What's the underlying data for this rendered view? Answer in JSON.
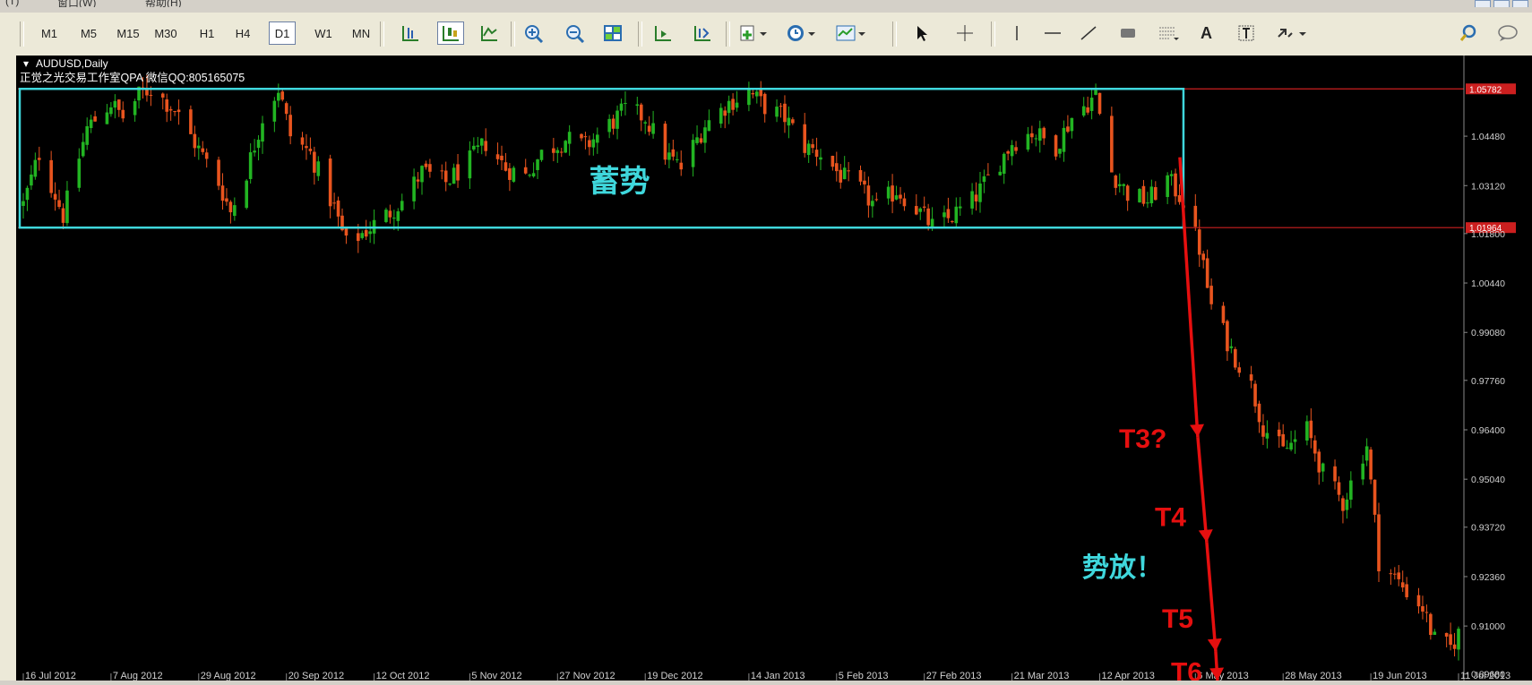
{
  "menu": [
    "(T)",
    "窗口(W)",
    "帮助(H)"
  ],
  "toolbar": {
    "timeframes": [
      "M1",
      "M5",
      "M15",
      "M30",
      "H1",
      "H4",
      "D1",
      "W1",
      "MN"
    ],
    "active_timeframe": "D1",
    "icons": [
      "bar-chart-icon",
      "candlestick-icon",
      "line-chart-icon",
      "zoom-in-icon",
      "zoom-out-icon",
      "tile-windows-icon",
      "auto-scroll-icon",
      "chart-shift-icon",
      "indicators-icon",
      "periods-icon",
      "templates-icon",
      "cursor-icon",
      "crosshair-icon",
      "vertical-line-icon",
      "horizontal-line-icon",
      "trendline-icon",
      "rectangle-icon",
      "fibonacci-icon",
      "text-icon",
      "text-label-icon",
      "arrows-icon",
      "search-icon",
      "chat-icon"
    ],
    "text_tool_label": "A"
  },
  "chart_header": {
    "symbol": "AUDUSD,Daily",
    "watermark": "正觉之光交易工作室QPA 微信QQ:805165075"
  },
  "colors": {
    "background": "#000000",
    "bull": "#22b422",
    "bear": "#e8541e",
    "box": "#3fd7dc",
    "level_line": "#cc1f1f",
    "arrow": "#e60f0f",
    "axis_text": "#d0d0d0"
  },
  "annotations": {
    "box_label": "蓄势",
    "breakout_label": "势放！",
    "targets": [
      "T3?",
      "T4",
      "T5",
      "T6"
    ]
  },
  "chart_data": {
    "type": "candlestick",
    "symbol": "AUDUSD",
    "timeframe": "Daily",
    "ylim": [
      0.895,
      1.067
    ],
    "y_ticks": [
      "1.04480",
      "1.03120",
      "1.01800",
      "1.00440",
      "0.99080",
      "0.97760",
      "0.96400",
      "0.95040",
      "0.93720",
      "0.92360",
      "0.91000",
      "0.89680"
    ],
    "x_ticks": [
      "16 Jul 2012",
      "7 Aug 2012",
      "29 Aug 2012",
      "20 Sep 2012",
      "12 Oct 2012",
      "5 Nov 2012",
      "27 Nov 2012",
      "19 Dec 2012",
      "14 Jan 2013",
      "5 Feb 2013",
      "27 Feb 2013",
      "21 Mar 2013",
      "12 Apr 2013",
      "6 May 2013",
      "28 May 2013",
      "19 Jun 2013",
      "11 Jul 2013"
    ],
    "price_labels": [
      {
        "value": 1.05782,
        "text": "1.05782"
      },
      {
        "value": 1.01964,
        "text": "1.01964"
      }
    ],
    "consolidation_box": {
      "x_from": "16 Jul 2012",
      "x_to": "3 May 2013",
      "y_low": 1.01964,
      "y_high": 1.05782
    },
    "close_path": [
      [
        "2012-07-16",
        1.026
      ],
      [
        "2012-07-20",
        1.04
      ],
      [
        "2012-07-26",
        1.023
      ],
      [
        "2012-08-01",
        1.047
      ],
      [
        "2012-08-07",
        1.054
      ],
      [
        "2012-08-10",
        1.05
      ],
      [
        "2012-08-14",
        1.056
      ],
      [
        "2012-08-17",
        1.058
      ],
      [
        "2012-08-23",
        1.052
      ],
      [
        "2012-08-28",
        1.043
      ],
      [
        "2012-09-03",
        1.032
      ],
      [
        "2012-09-06",
        1.024
      ],
      [
        "2012-09-10",
        1.035
      ],
      [
        "2012-09-14",
        1.05
      ],
      [
        "2012-09-18",
        1.058
      ],
      [
        "2012-09-21",
        1.045
      ],
      [
        "2012-09-26",
        1.04
      ],
      [
        "2012-10-02",
        1.025
      ],
      [
        "2012-10-05",
        1.015
      ],
      [
        "2012-10-09",
        1.018
      ],
      [
        "2012-10-15",
        1.023
      ],
      [
        "2012-10-19",
        1.027
      ],
      [
        "2012-10-24",
        1.035
      ],
      [
        "2012-10-30",
        1.032
      ],
      [
        "2012-11-05",
        1.038
      ],
      [
        "2012-11-09",
        1.043
      ],
      [
        "2012-11-14",
        1.036
      ],
      [
        "2012-11-19",
        1.034
      ],
      [
        "2012-11-23",
        1.04
      ],
      [
        "2012-11-29",
        1.044
      ],
      [
        "2012-12-04",
        1.042
      ],
      [
        "2012-12-10",
        1.048
      ],
      [
        "2012-12-14",
        1.052
      ],
      [
        "2012-12-19",
        1.05
      ],
      [
        "2012-12-24",
        1.04
      ],
      [
        "2012-12-28",
        1.036
      ],
      [
        "2013-01-03",
        1.048
      ],
      [
        "2013-01-09",
        1.054
      ],
      [
        "2013-01-14",
        1.057
      ],
      [
        "2013-01-18",
        1.053
      ],
      [
        "2013-01-23",
        1.05
      ],
      [
        "2013-01-28",
        1.042
      ],
      [
        "2013-02-01",
        1.04
      ],
      [
        "2013-02-06",
        1.034
      ],
      [
        "2013-02-11",
        1.03
      ],
      [
        "2013-02-15",
        1.025
      ],
      [
        "2013-02-20",
        1.03
      ],
      [
        "2013-02-25",
        1.025
      ],
      [
        "2013-03-01",
        1.02
      ],
      [
        "2013-03-05",
        1.022
      ],
      [
        "2013-03-11",
        1.027
      ],
      [
        "2013-03-15",
        1.033
      ],
      [
        "2013-03-21",
        1.043
      ],
      [
        "2013-03-26",
        1.046
      ],
      [
        "2013-04-01",
        1.042
      ],
      [
        "2013-04-05",
        1.05
      ],
      [
        "2013-04-11",
        1.056
      ],
      [
        "2013-04-15",
        1.035
      ],
      [
        "2013-04-19",
        1.029
      ],
      [
        "2013-04-24",
        1.027
      ],
      [
        "2013-04-29",
        1.033
      ],
      [
        "2013-05-03",
        1.027
      ],
      [
        "2013-05-07",
        1.014
      ],
      [
        "2013-05-10",
        0.998
      ],
      [
        "2013-05-15",
        0.986
      ],
      [
        "2013-05-20",
        0.976
      ],
      [
        "2013-05-23",
        0.965
      ],
      [
        "2013-05-28",
        0.958
      ],
      [
        "2013-06-03",
        0.964
      ],
      [
        "2013-06-07",
        0.952
      ],
      [
        "2013-06-12",
        0.944
      ],
      [
        "2013-06-18",
        0.96
      ],
      [
        "2013-06-21",
        0.928
      ],
      [
        "2013-06-26",
        0.922
      ],
      [
        "2013-07-02",
        0.915
      ],
      [
        "2013-07-05",
        0.906
      ],
      [
        "2013-07-09",
        0.904
      ],
      [
        "2013-07-11",
        0.908
      ]
    ],
    "grid": false,
    "legend": "none"
  }
}
